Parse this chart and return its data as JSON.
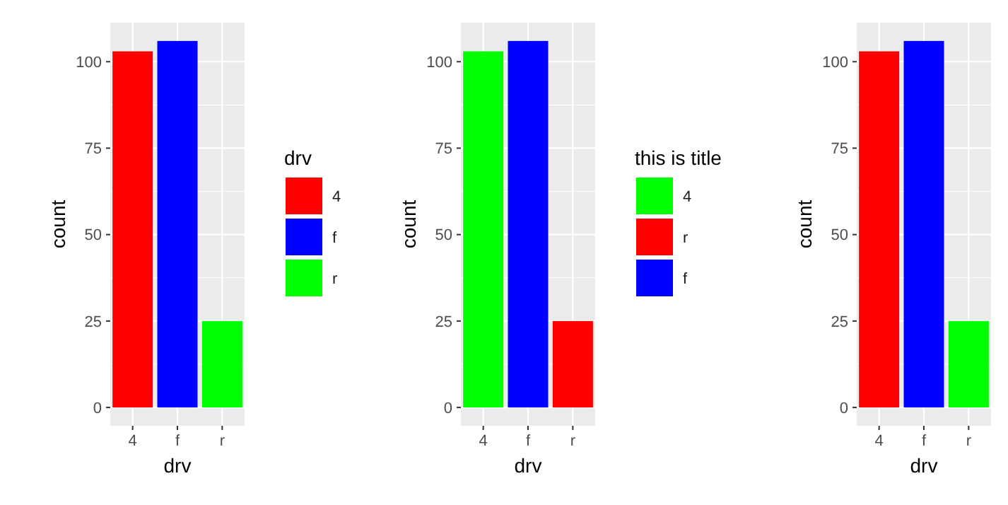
{
  "chart_data": [
    {
      "type": "bar",
      "xlabel": "drv",
      "ylabel": "count",
      "legend_title": "drv",
      "legend": "right",
      "grid": true,
      "categories": [
        "4",
        "f",
        "r"
      ],
      "ylim": [
        -5.3,
        111.3
      ],
      "yticks": [
        0,
        25,
        50,
        75,
        100
      ],
      "series": [
        {
          "name": "4",
          "color": "#ff0000",
          "values": [
            103,
            null,
            null
          ]
        },
        {
          "name": "f",
          "color": "#0000ff",
          "values": [
            null,
            106,
            null
          ]
        },
        {
          "name": "r",
          "color": "#00ff00",
          "values": [
            null,
            null,
            25
          ]
        }
      ]
    },
    {
      "type": "bar",
      "xlabel": "drv",
      "ylabel": "count",
      "legend_title": "this is title",
      "legend": "right",
      "grid": true,
      "categories": [
        "4",
        "f",
        "r"
      ],
      "ylim": [
        -5.3,
        111.3
      ],
      "yticks": [
        0,
        25,
        50,
        75,
        100
      ],
      "series": [
        {
          "name": "4",
          "color": "#00ff00",
          "values": [
            103,
            null,
            null
          ]
        },
        {
          "name": "r",
          "color": "#ff0000",
          "values": [
            null,
            null,
            25
          ]
        },
        {
          "name": "f",
          "color": "#0000ff",
          "values": [
            null,
            106,
            null
          ]
        }
      ]
    },
    {
      "type": "bar",
      "xlabel": "drv",
      "ylabel": "count",
      "grid": true,
      "categories": [
        "4",
        "f",
        "r"
      ],
      "ylim": [
        -5.3,
        111.3
      ],
      "yticks": [
        0,
        25,
        50,
        75,
        100
      ],
      "series": [
        {
          "color": "#ff0000",
          "values": [
            103,
            null,
            null
          ]
        },
        {
          "color": "#0000ff",
          "values": [
            null,
            106,
            null
          ]
        },
        {
          "color": "#00ff00",
          "values": [
            null,
            null,
            25
          ]
        }
      ]
    }
  ]
}
